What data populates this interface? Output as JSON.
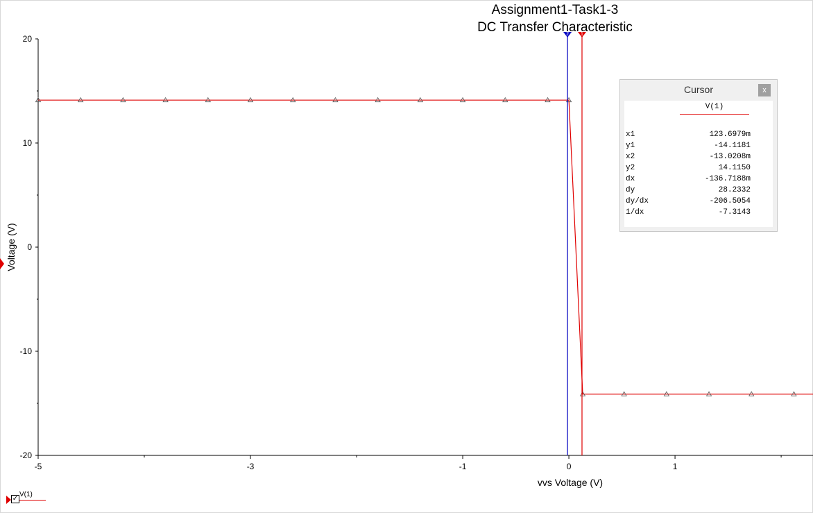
{
  "chart_data": {
    "type": "line",
    "title": "Assignment1-Task1-3",
    "subtitle": "DC Transfer Characteristic",
    "xlabel": "vvs Voltage (V)",
    "ylabel": "Voltage (V)",
    "xlim": [
      -5,
      2.3
    ],
    "ylim": [
      -20,
      20
    ],
    "x_ticks": [
      -5,
      -3,
      -1,
      0,
      1
    ],
    "y_ticks": [
      20,
      10,
      0,
      -10,
      -20
    ],
    "grid": false,
    "series": [
      {
        "name": "V(1)",
        "color": "#e00000",
        "x": [
          -5,
          -4.6,
          -4.2,
          -3.8,
          -3.4,
          -3.0,
          -2.6,
          -2.2,
          -1.8,
          -1.4,
          -1.0,
          -0.6,
          -0.2,
          0,
          0.13,
          0.52,
          0.92,
          1.32,
          1.72,
          2.12,
          2.3
        ],
        "y": [
          14.12,
          14.12,
          14.12,
          14.12,
          14.12,
          14.12,
          14.12,
          14.12,
          14.12,
          14.12,
          14.12,
          14.12,
          14.12,
          14.12,
          -14.12,
          -14.12,
          -14.12,
          -14.12,
          -14.12,
          -14.12,
          -14.12
        ],
        "markers": [
          true,
          true,
          true,
          true,
          true,
          true,
          true,
          true,
          true,
          true,
          true,
          true,
          true,
          true,
          true,
          true,
          true,
          true,
          true,
          true,
          false
        ]
      }
    ],
    "cursors": [
      {
        "label": "2",
        "x": -0.0130208,
        "color": "#0000c0"
      },
      {
        "label": "1",
        "x": 0.1236979,
        "color": "#e00000"
      }
    ],
    "legend": {
      "position": "bottom-left"
    }
  },
  "cursor_panel": {
    "title": "Cursor",
    "close_label": "x",
    "series": "V(1)",
    "rows": [
      {
        "key": "x1",
        "value": "123.6979m"
      },
      {
        "key": "y1",
        "value": "-14.1181"
      },
      {
        "key": "x2",
        "value": "-13.0208m"
      },
      {
        "key": "y2",
        "value": "14.1150"
      },
      {
        "key": "dx",
        "value": "-136.7188m"
      },
      {
        "key": "dy",
        "value": "28.2332"
      },
      {
        "key": "dy/dx",
        "value": "-206.5054"
      },
      {
        "key": "1/dx",
        "value": "-7.3143"
      }
    ]
  },
  "legend": {
    "label": "V(1)",
    "checked": "✓"
  }
}
